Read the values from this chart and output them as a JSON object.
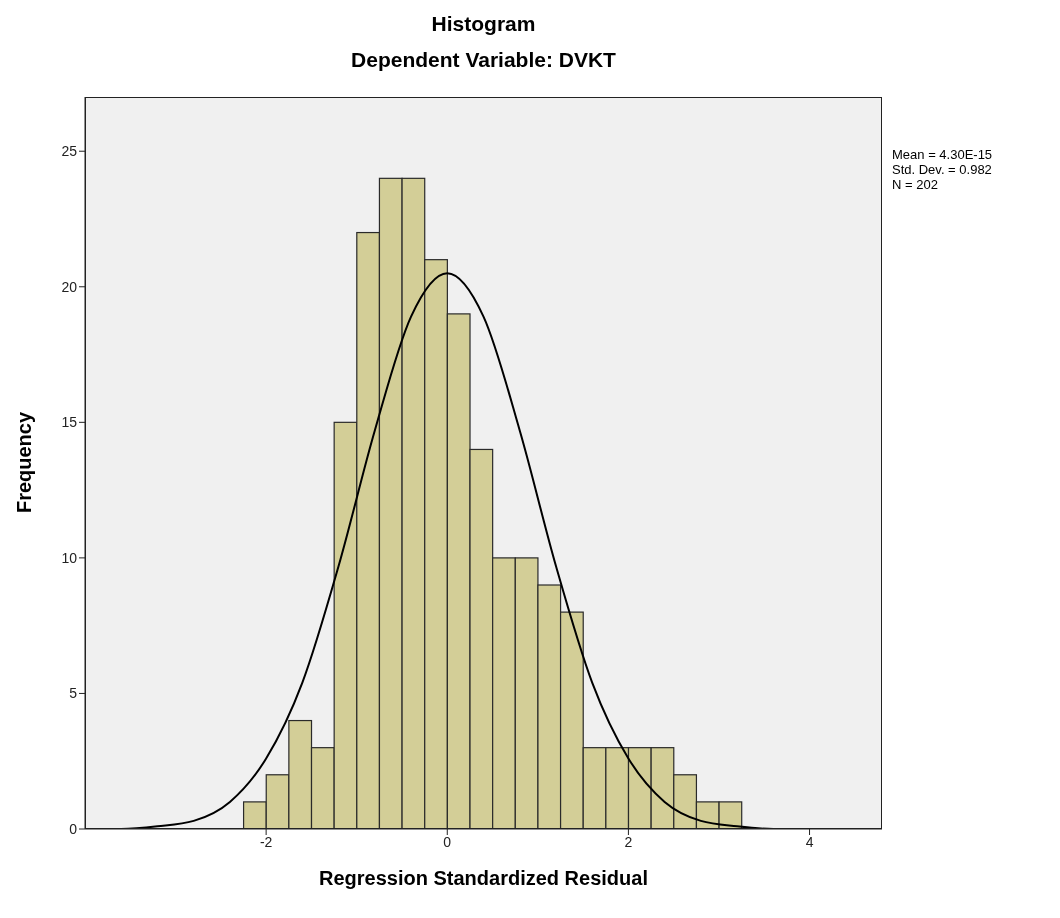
{
  "chart_data": {
    "type": "histogram",
    "title": "Histogram",
    "subtitle": "Dependent Variable: DVKT",
    "xlabel": "Regression Standardized Residual",
    "ylabel": "Frequency",
    "bins": [
      -2.25,
      -2,
      -1.75,
      -1.5,
      -1.25,
      -1,
      -0.75,
      -0.5,
      -0.25,
      0,
      0.25,
      0.5,
      0.75,
      1,
      1.25,
      1.5,
      1.75,
      2,
      2.25,
      2.5,
      2.75,
      3,
      3.25
    ],
    "values": [
      1,
      2,
      4,
      3,
      15,
      22,
      24,
      24,
      21,
      19,
      14,
      10,
      10,
      9,
      8,
      3,
      3,
      3,
      3,
      2,
      1,
      1
    ],
    "color": "#d3ce97",
    "series": [
      {
        "type": "line",
        "color": "#000000",
        "x": [
          -4,
          -3.6,
          -3.2,
          -2.8,
          -2.4,
          -2,
          -1.6,
          -1.2,
          -0.8,
          -0.4,
          0,
          0.4,
          0.8,
          1.2,
          1.6,
          2,
          2.4,
          2.8,
          3.2,
          3.6,
          4,
          4.4,
          4.8
        ],
        "values": [
          0,
          0,
          0.1,
          0.3,
          1,
          2.6,
          5.4,
          9.7,
          14.7,
          18.9,
          20.5,
          18.9,
          14.7,
          9.7,
          5.4,
          2.6,
          1,
          0.3,
          0.1,
          0,
          0,
          0,
          0
        ]
      }
    ],
    "xlim": [
      -4,
      4.8
    ],
    "ylim": [
      0,
      27
    ],
    "xticks": [
      -2,
      0,
      2,
      4
    ],
    "yticks": [
      0,
      5,
      10,
      15,
      20,
      25
    ],
    "annotations": [
      "Mean = 4.30E-15",
      "Std. Dev. = 0.982",
      "N = 202"
    ]
  }
}
